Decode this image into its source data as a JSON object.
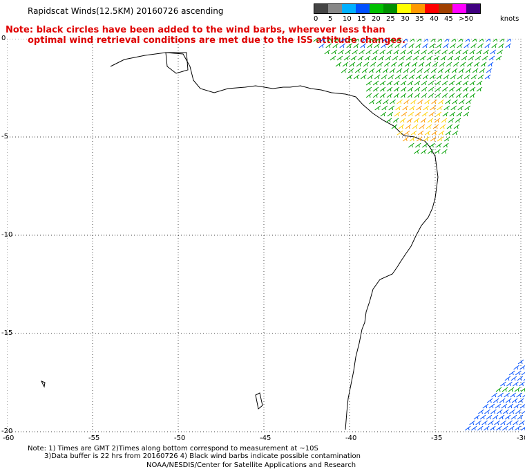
{
  "title": "Rapidscat Winds(12.5KM) 20160726 ascending",
  "note": {
    "line1": "Note: black circles have been added to the wind barbs, wherever less than",
    "line2": "optimal wind retrieval conditions are met due to the ISS attitude changes."
  },
  "legend": {
    "units": "knots",
    "labels": [
      "0",
      "5",
      "10",
      "15",
      "20",
      "25",
      "30",
      "35",
      "40",
      "45",
      ">50"
    ],
    "colors": [
      "#444444",
      "#888888",
      "#00b0ff",
      "#0050ff",
      "#00c000",
      "#009000",
      "#ffff00",
      "#ff9900",
      "#ff0000",
      "#a04000",
      "#ff00ff",
      "#400080"
    ]
  },
  "axes": {
    "x_ticks": [
      "-60",
      "-55",
      "-50",
      "-45",
      "-40",
      "-35",
      "-30"
    ],
    "y_ticks": [
      "0",
      "-5",
      "-10",
      "-15",
      "-20"
    ]
  },
  "footer": {
    "line1": "Note: 1) Times are GMT 2)Times along bottom correspond to measurement at ~10S",
    "line2": "3)Data buffer is 22 hrs from 20160726 4) Black wind barbs indicate possible contamination",
    "line3": "NOAA/NESDIS/Center for Satellite Applications and Research"
  },
  "colors": {
    "note": "#e00000",
    "grid": "#000000"
  }
}
